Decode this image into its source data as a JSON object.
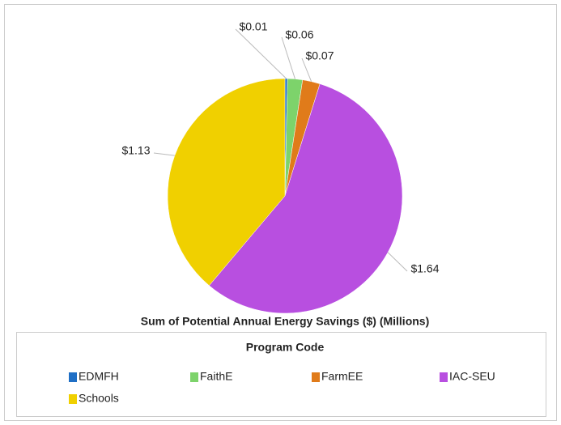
{
  "chart_data": {
    "type": "pie",
    "title": "Sum of Potential Annual Energy Savings ($) (Millions)",
    "legend_title": "Program Code",
    "categories": [
      "EDMFH",
      "FaithE",
      "FarmEE",
      "IAC-SEU",
      "Schools"
    ],
    "values": [
      0.01,
      0.06,
      0.07,
      1.64,
      1.13
    ],
    "value_labels": [
      "$0.01",
      "$0.06",
      "$0.07",
      "$1.64",
      "$1.13"
    ],
    "colors": [
      "#1f6fc5",
      "#7dd36b",
      "#e07b1a",
      "#b84fe0",
      "#f0d000"
    ]
  }
}
